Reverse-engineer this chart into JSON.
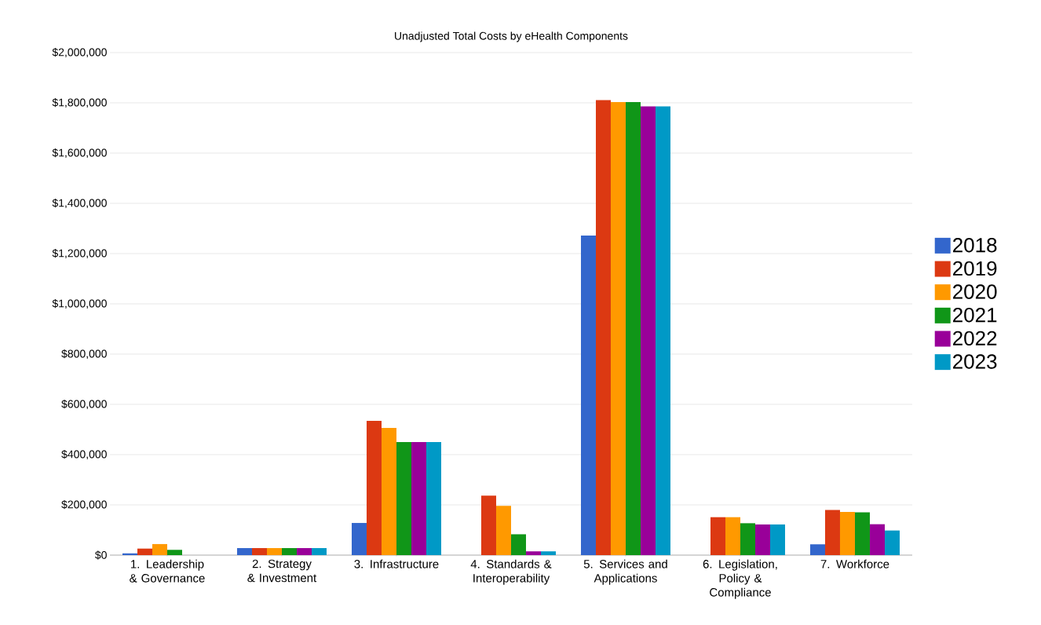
{
  "chart_data": {
    "type": "bar",
    "title": "Unadjusted Total Costs by eHealth Components",
    "categories": [
      "1.  Leadership & Governance",
      "2.  Strategy & Investment",
      "3.  Infrastructure",
      "4.  Standards & Interoperability",
      "5.  Services and Applications",
      "6.  Legislation, Policy & Compliance",
      "7.  Workforce"
    ],
    "series": [
      {
        "name": "2018",
        "color": "#3366cc",
        "values": [
          7000,
          28000,
          128000,
          0,
          1272000,
          0,
          43000
        ]
      },
      {
        "name": "2019",
        "color": "#dc3912",
        "values": [
          26000,
          28000,
          534000,
          237000,
          1811000,
          151000,
          180000
        ]
      },
      {
        "name": "2020",
        "color": "#ff9900",
        "values": [
          44000,
          28000,
          506000,
          196000,
          1803000,
          151000,
          172000
        ]
      },
      {
        "name": "2021",
        "color": "#109618",
        "values": [
          21000,
          28000,
          450000,
          83000,
          1803000,
          127000,
          170000
        ]
      },
      {
        "name": "2022",
        "color": "#990099",
        "values": [
          0,
          28000,
          450000,
          15000,
          1786000,
          122000,
          123000
        ]
      },
      {
        "name": "2023",
        "color": "#0099c6",
        "values": [
          0,
          28000,
          450000,
          15000,
          1786000,
          122000,
          98000
        ]
      }
    ],
    "ylim": [
      0,
      2000000
    ],
    "yticks": [
      {
        "value": 0,
        "label": "$0"
      },
      {
        "value": 200000,
        "label": "$200,000"
      },
      {
        "value": 400000,
        "label": "$400,000"
      },
      {
        "value": 600000,
        "label": "$600,000"
      },
      {
        "value": 800000,
        "label": "$800,000"
      },
      {
        "value": 1000000,
        "label": "$1,000,000"
      },
      {
        "value": 1200000,
        "label": "$1,200,000"
      },
      {
        "value": 1400000,
        "label": "$1,400,000"
      },
      {
        "value": 1600000,
        "label": "$1,600,000"
      },
      {
        "value": 1800000,
        "label": "$1,800,000"
      },
      {
        "value": 2000000,
        "label": "$2,000,000"
      }
    ],
    "grid": "y",
    "legend": "right"
  }
}
